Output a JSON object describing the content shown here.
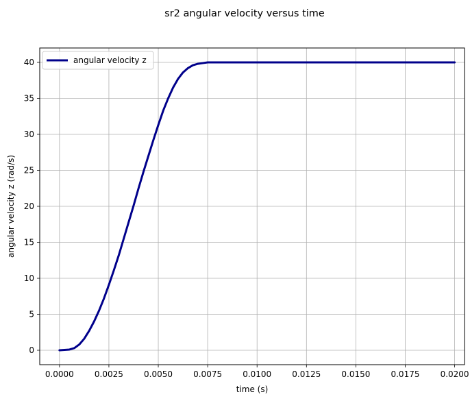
{
  "chart_data": {
    "type": "line",
    "title": "sr2 angular velocity versus time",
    "xlabel": "time (s)",
    "ylabel": "angular velocity z (rad/s)",
    "xlim": [
      -0.001,
      0.0205
    ],
    "ylim": [
      -2,
      42
    ],
    "grid": true,
    "legend_position": "top-left",
    "x_ticks": [
      0.0,
      0.0025,
      0.005,
      0.0075,
      0.01,
      0.0125,
      0.015,
      0.0175,
      0.02
    ],
    "x_tick_labels": [
      "0.0000",
      "0.0025",
      "0.0050",
      "0.0075",
      "0.0100",
      "0.0125",
      "0.0150",
      "0.0175",
      "0.0200"
    ],
    "y_ticks": [
      0,
      5,
      10,
      15,
      20,
      25,
      30,
      35,
      40
    ],
    "y_tick_labels": [
      "0",
      "5",
      "10",
      "15",
      "20",
      "25",
      "30",
      "35",
      "40"
    ],
    "series": [
      {
        "name": "angular velocity z",
        "color": "#00008b",
        "x": [
          0.0,
          0.0005,
          0.00075,
          0.001,
          0.00125,
          0.0015,
          0.00175,
          0.002,
          0.00225,
          0.0025,
          0.00275,
          0.003,
          0.00325,
          0.0035,
          0.00375,
          0.004,
          0.00425,
          0.0045,
          0.00475,
          0.005,
          0.00525,
          0.0055,
          0.00575,
          0.006,
          0.00625,
          0.0065,
          0.00675,
          0.007,
          0.00725,
          0.0075,
          0.00775,
          0.008,
          0.0085,
          0.01,
          0.0125,
          0.015,
          0.0175,
          0.02
        ],
        "y": [
          0.0,
          0.1,
          0.3,
          0.8,
          1.6,
          2.7,
          4.0,
          5.5,
          7.2,
          9.1,
          11.1,
          13.2,
          15.5,
          17.8,
          20.1,
          22.5,
          24.8,
          27.0,
          29.2,
          31.3,
          33.3,
          35.0,
          36.5,
          37.7,
          38.6,
          39.2,
          39.6,
          39.8,
          39.9,
          40.0,
          40.0,
          40.0,
          40.0,
          40.0,
          40.0,
          40.0,
          40.0,
          40.0
        ]
      }
    ]
  }
}
